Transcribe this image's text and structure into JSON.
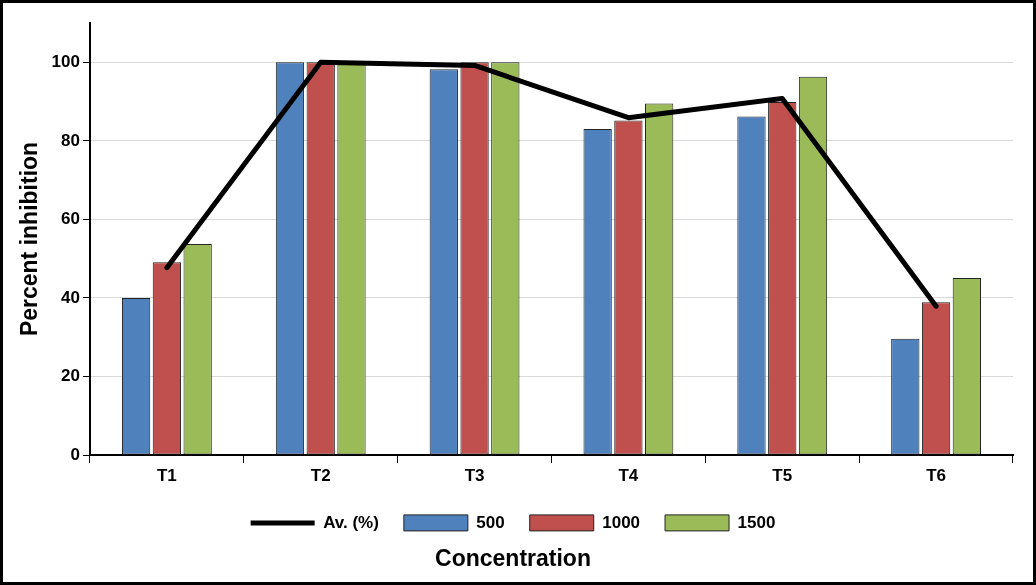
{
  "chart_data": {
    "type": "bar",
    "xlabel": "Concentration",
    "ylabel": "Percent inhibition",
    "categories": [
      "T1",
      "T2",
      "T3",
      "T4",
      "T5",
      "T6"
    ],
    "series": [
      {
        "name": "500",
        "color": "#4f81bd",
        "values": [
          40.0,
          100,
          98.2,
          83.0,
          86.2,
          29.6
        ]
      },
      {
        "name": "1000",
        "color": "#c0504d",
        "values": [
          49.1,
          100,
          100,
          85.2,
          89.9,
          38.9
        ]
      },
      {
        "name": "1500",
        "color": "#9bbb59",
        "values": [
          53.7,
          100,
          100,
          89.5,
          96.3,
          45.1
        ]
      },
      {
        "name": "Av. (%)",
        "type": "line",
        "color": "#000000",
        "values": [
          47.7,
          100,
          99.2,
          85.9,
          90.8,
          37.9
        ]
      }
    ],
    "ylim": [
      0,
      110
    ],
    "yticks": [
      0,
      20,
      40,
      60,
      80,
      100
    ],
    "grid": "y",
    "legend": "bottom",
    "marker": "none",
    "line_style": "solid"
  }
}
